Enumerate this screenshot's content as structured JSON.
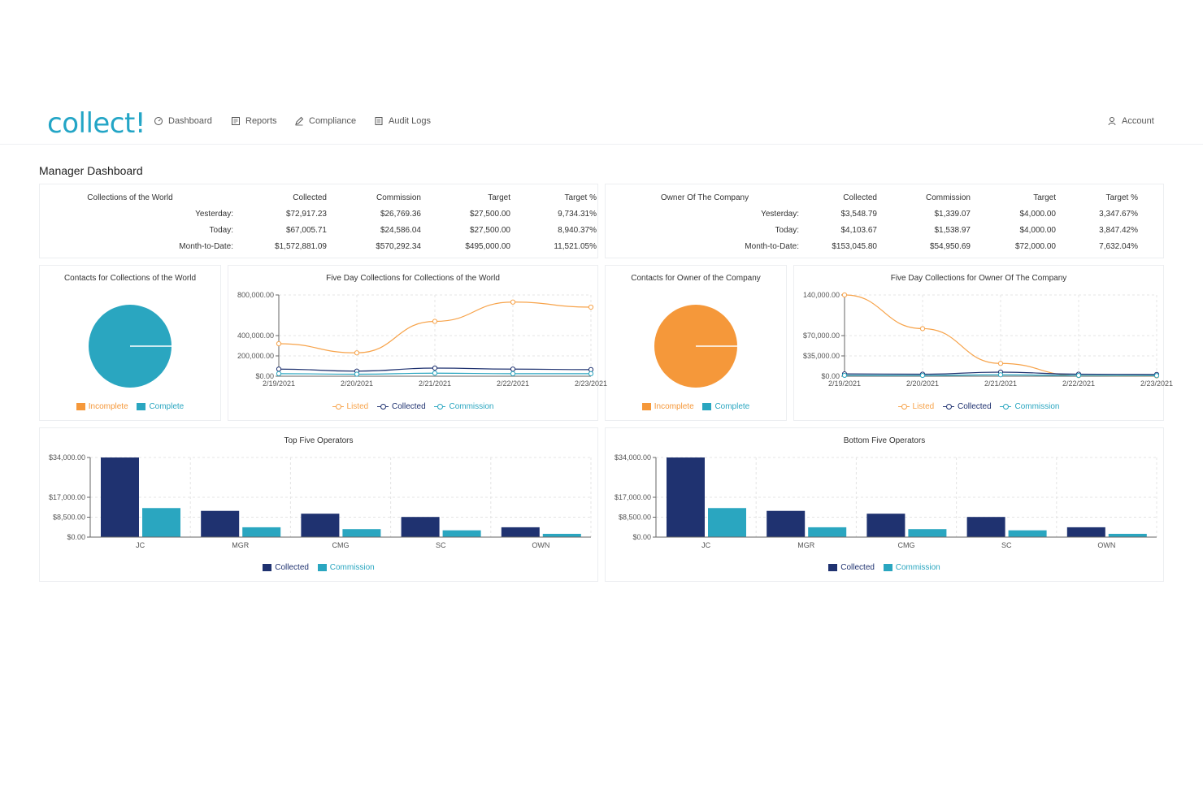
{
  "app": {
    "logo": "collect!"
  },
  "nav": {
    "items": [
      {
        "label": "Dashboard",
        "icon": "dashboard-icon"
      },
      {
        "label": "Reports",
        "icon": "reports-icon"
      },
      {
        "label": "Compliance",
        "icon": "pencil-icon"
      },
      {
        "label": "Audit Logs",
        "icon": "document-icon"
      }
    ],
    "account": {
      "label": "Account",
      "icon": "user-icon"
    }
  },
  "page": {
    "title": "Manager Dashboard"
  },
  "colors": {
    "brand": "#23a5c6",
    "listed": "#f7a34a",
    "collected": "#1f3270",
    "commission": "#2aa6c0",
    "incomplete": "#f5983a",
    "complete": "#2aa6c0"
  },
  "summaries": [
    {
      "name": "Collections of the World",
      "headers": [
        "Collected",
        "Commission",
        "Target",
        "Target %"
      ],
      "rows": [
        {
          "label": "Yesterday:",
          "values": [
            "$72,917.23",
            "$26,769.36",
            "$27,500.00",
            "9,734.31%"
          ]
        },
        {
          "label": "Today:",
          "values": [
            "$67,005.71",
            "$24,586.04",
            "$27,500.00",
            "8,940.37%"
          ]
        },
        {
          "label": "Month-to-Date:",
          "values": [
            "$1,572,881.09",
            "$570,292.34",
            "$495,000.00",
            "11,521.05%"
          ]
        }
      ]
    },
    {
      "name": "Owner Of The Company",
      "headers": [
        "Collected",
        "Commission",
        "Target",
        "Target %"
      ],
      "rows": [
        {
          "label": "Yesterday:",
          "values": [
            "$3,548.79",
            "$1,339.07",
            "$4,000.00",
            "3,347.67%"
          ]
        },
        {
          "label": "Today:",
          "values": [
            "$4,103.67",
            "$1,538.97",
            "$4,000.00",
            "3,847.42%"
          ]
        },
        {
          "label": "Month-to-Date:",
          "values": [
            "$153,045.80",
            "$54,950.69",
            "$72,000.00",
            "7,632.04%"
          ]
        }
      ]
    }
  ],
  "pies": [
    {
      "title": "Contacts for Collections of the World",
      "legend": [
        "Incomplete",
        "Complete"
      ],
      "incomplete_fraction": 0.0,
      "complete_fraction": 1.0,
      "fill": "#2aa6c0"
    },
    {
      "title": "Contacts for Owner of the Company",
      "legend": [
        "Incomplete",
        "Complete"
      ],
      "incomplete_fraction": 1.0,
      "complete_fraction": 0.0,
      "fill": "#f5983a"
    }
  ],
  "chart_data": [
    {
      "type": "line",
      "title": "Five Day Collections for Collections of the World",
      "x": [
        "2/19/2021",
        "2/20/2021",
        "2/21/2021",
        "2/22/2021",
        "2/23/2021"
      ],
      "ylim": [
        0,
        800000
      ],
      "yticks": [
        "$0.00",
        "200,000.00",
        "400,000.00",
        "800,000.00"
      ],
      "ytick_values": [
        0,
        200000,
        400000,
        800000
      ],
      "grid": true,
      "legend": [
        "Listed",
        "Collected",
        "Commission"
      ],
      "series": [
        {
          "name": "Listed",
          "values": [
            320000,
            230000,
            540000,
            730000,
            680000
          ]
        },
        {
          "name": "Collected",
          "values": [
            70000,
            50000,
            80000,
            70000,
            65000
          ]
        },
        {
          "name": "Commission",
          "values": [
            25000,
            20000,
            30000,
            25000,
            25000
          ]
        }
      ]
    },
    {
      "type": "line",
      "title": "Five Day Collections for Owner Of The Company",
      "x": [
        "2/19/2021",
        "2/20/2021",
        "2/21/2021",
        "2/22/2021",
        "2/23/2021"
      ],
      "ylim": [
        0,
        140000
      ],
      "yticks": [
        "$0.00",
        "$35,000.00",
        "$70,000.00",
        "140,000.00"
      ],
      "ytick_values": [
        0,
        35000,
        70000,
        140000
      ],
      "grid": true,
      "legend": [
        "Listed",
        "Collected",
        "Commission"
      ],
      "series": [
        {
          "name": "Listed",
          "values": [
            140000,
            82000,
            22000,
            1000,
            500
          ]
        },
        {
          "name": "Collected",
          "values": [
            4000,
            3500,
            7000,
            3500,
            3000
          ]
        },
        {
          "name": "Commission",
          "values": [
            1500,
            1300,
            2500,
            1300,
            1100
          ]
        }
      ]
    },
    {
      "type": "bar",
      "title": "Top Five Operators",
      "categories": [
        "JC",
        "MGR",
        "CMG",
        "SC",
        "OWN"
      ],
      "ylim": [
        0,
        34000
      ],
      "yticks": [
        "$0.00",
        "$8,500.00",
        "$17,000.00",
        "$34,000.00"
      ],
      "ytick_values": [
        0,
        8500,
        17000,
        34000
      ],
      "grid": true,
      "legend": [
        "Collected",
        "Commission"
      ],
      "series": [
        {
          "name": "Collected",
          "values": [
            34000,
            11200,
            10000,
            8600,
            4200
          ]
        },
        {
          "name": "Commission",
          "values": [
            12400,
            4200,
            3400,
            2900,
            1400
          ]
        }
      ]
    },
    {
      "type": "bar",
      "title": "Bottom Five Operators",
      "categories": [
        "JC",
        "MGR",
        "CMG",
        "SC",
        "OWN"
      ],
      "ylim": [
        0,
        34000
      ],
      "yticks": [
        "$0.00",
        "$8,500.00",
        "$17,000.00",
        "$34,000.00"
      ],
      "ytick_values": [
        0,
        8500,
        17000,
        34000
      ],
      "grid": true,
      "legend": [
        "Collected",
        "Commission"
      ],
      "series": [
        {
          "name": "Collected",
          "values": [
            34000,
            11200,
            10000,
            8600,
            4200
          ]
        },
        {
          "name": "Commission",
          "values": [
            12400,
            4200,
            3400,
            2900,
            1400
          ]
        }
      ]
    }
  ]
}
